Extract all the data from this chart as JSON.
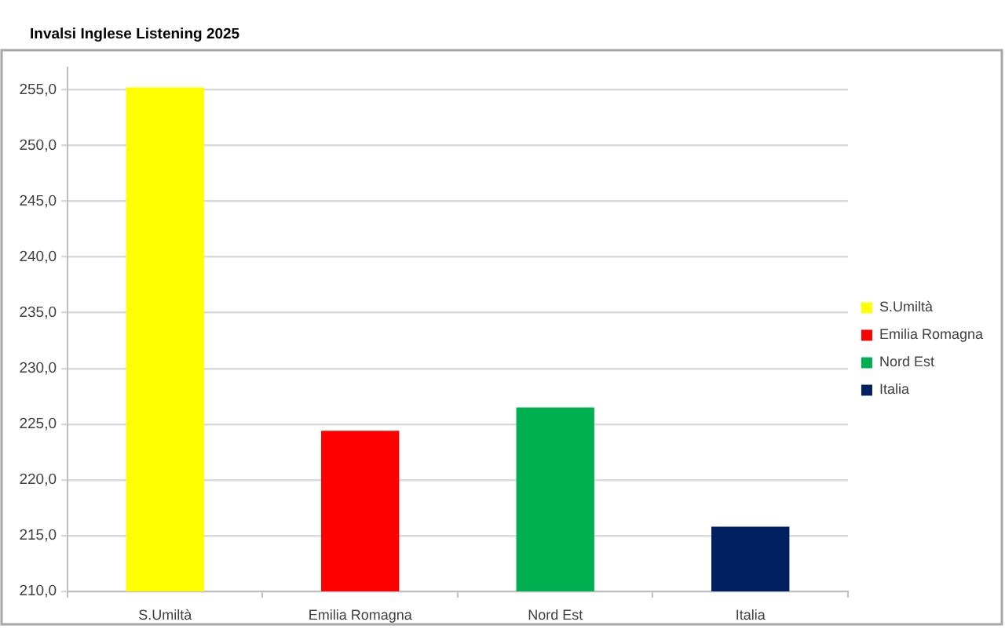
{
  "chart_data": {
    "type": "bar",
    "title": "Invalsi Inglese Listening 2025",
    "categories": [
      "S.Umiltà",
      "Emilia Romagna",
      "Nord Est",
      "Italia"
    ],
    "series": [
      {
        "name": "S.Umiltà",
        "color": "#ffff00",
        "values": [
          255.2,
          null,
          null,
          null
        ]
      },
      {
        "name": "Emilia Romagna",
        "color": "#ff0000",
        "values": [
          null,
          224.4,
          null,
          null
        ]
      },
      {
        "name": "Nord Est",
        "color": "#00b050",
        "values": [
          null,
          null,
          226.5,
          null
        ]
      },
      {
        "name": "Italia",
        "color": "#002060",
        "values": [
          null,
          null,
          null,
          215.8
        ]
      }
    ],
    "ylim": [
      210,
      257
    ],
    "yticks": [
      {
        "value": 210,
        "label": "210,0"
      },
      {
        "value": 215,
        "label": "215,0"
      },
      {
        "value": 220,
        "label": "220,0"
      },
      {
        "value": 225,
        "label": "225,0"
      },
      {
        "value": 230,
        "label": "230,0"
      },
      {
        "value": 235,
        "label": "235,0"
      },
      {
        "value": 240,
        "label": "240,0"
      },
      {
        "value": 245,
        "label": "245,0"
      },
      {
        "value": 250,
        "label": "250,0"
      },
      {
        "value": 255,
        "label": "255,0"
      }
    ],
    "grid": "y",
    "legend": "right"
  }
}
